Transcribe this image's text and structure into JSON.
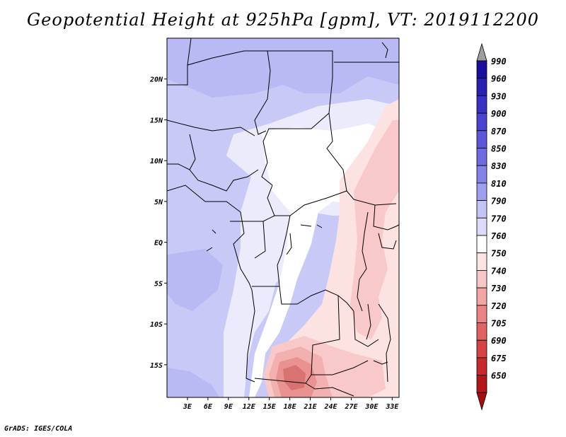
{
  "title": "Geopotential Height at 925hPa [gpm], VT: 2019112200",
  "footer": "GrADS: IGES/COLA",
  "map": {
    "lat_labels": [
      "20N",
      "15N",
      "10N",
      "5N",
      "EQ",
      "5S",
      "10S",
      "15S"
    ],
    "lon_labels": [
      "3E",
      "6E",
      "9E",
      "12E",
      "15E",
      "18E",
      "21E",
      "24E",
      "27E",
      "30E",
      "33E"
    ],
    "lat_range": [
      -19,
      25
    ],
    "lon_range": [
      0,
      34
    ]
  },
  "colorbar": {
    "levels": [
      "990",
      "960",
      "930",
      "900",
      "870",
      "850",
      "830",
      "810",
      "790",
      "770",
      "760",
      "750",
      "740",
      "730",
      "720",
      "705",
      "690",
      "675",
      "650"
    ],
    "colors": [
      "#1a0f9c",
      "#2a1fb0",
      "#3a30c2",
      "#4b42cf",
      "#5c56d8",
      "#6e6be0",
      "#8582e7",
      "#a09eee",
      "#c3c3f6",
      "#dcdcfa",
      "#ffffff",
      "#fde4e4",
      "#f8c8c8",
      "#f2a6a6",
      "#ea8484",
      "#e06262",
      "#d44444",
      "#c62a2a",
      "#b21818"
    ],
    "top_arrow_color": "#9e9e9e",
    "bottom_arrow_color": "#a01010"
  },
  "field_colors": {
    "c_800": "#b9b9f3",
    "c_790": "#c9c9f7",
    "c_780": "#d9d9fa",
    "c_770": "#ebebfc",
    "c_760": "#ffffff",
    "c_750": "#fde2e2",
    "c_740": "#f9c9c9",
    "c_730": "#f3b0b0",
    "c_720": "#ea9191",
    "c_705": "#d97272"
  }
}
